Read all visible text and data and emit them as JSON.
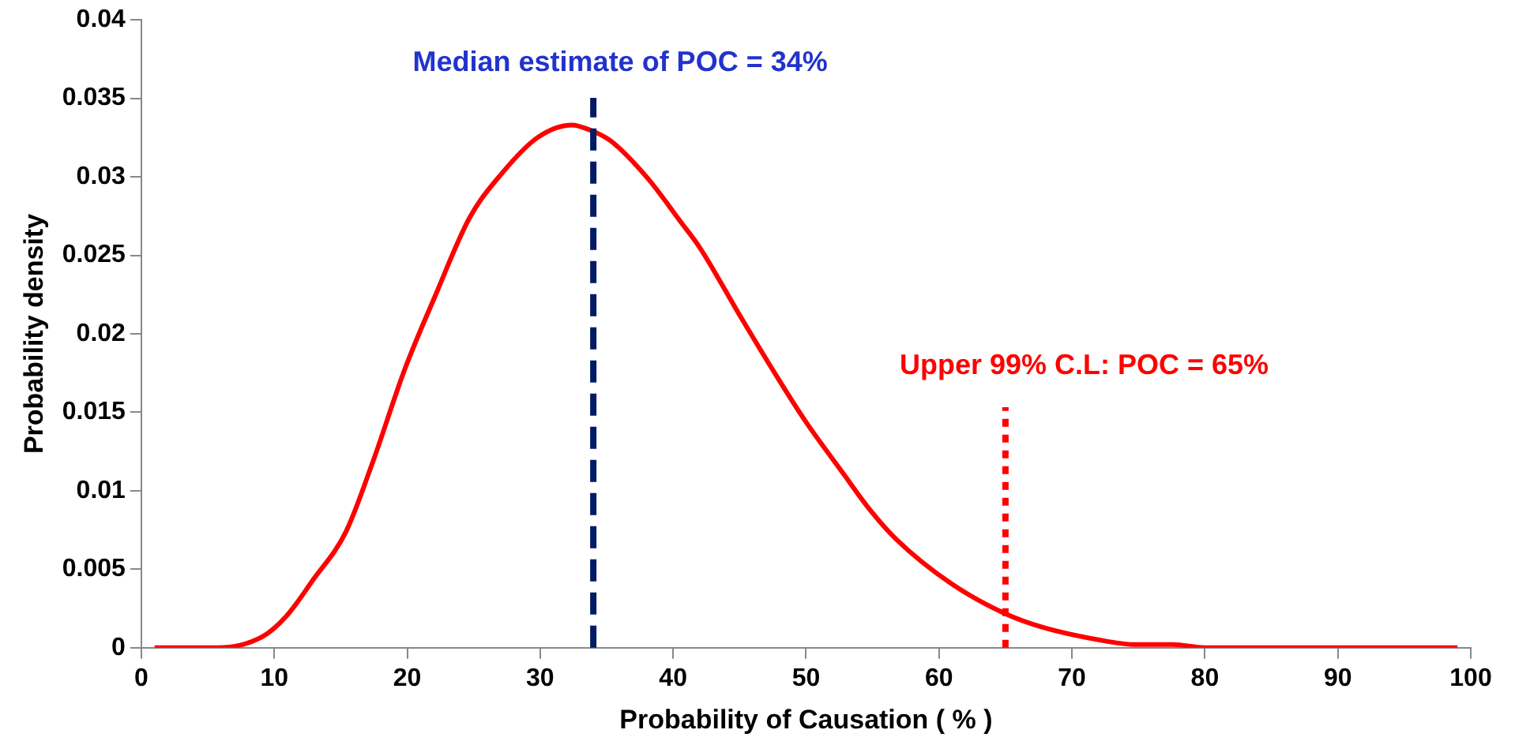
{
  "chart_data": {
    "type": "line",
    "xlabel": "Probability of Causation ( % )",
    "ylabel": "Probability density",
    "xlim": [
      0,
      100
    ],
    "xticks": [
      0,
      10,
      20,
      30,
      40,
      50,
      60,
      70,
      80,
      90,
      100
    ],
    "ylim": [
      0,
      0.04
    ],
    "yticks": [
      0,
      0.005,
      0.01,
      0.015,
      0.02,
      0.025,
      0.03,
      0.035,
      0.04
    ],
    "grid": false,
    "legend": false,
    "marker": "none",
    "line_style": "solid",
    "series": [
      {
        "color": "#ff0000",
        "x": [
          1,
          5.7,
          9.1,
          10.9,
          12.9,
          15.4,
          17.4,
          19.8,
          22.1,
          24.7,
          27.1,
          29.8,
          32.4,
          33.7,
          35.3,
          38.1,
          40.6,
          42,
          45,
          47.5,
          49.9,
          52.8,
          54.8,
          56.8,
          60.9,
          64.9,
          67.8,
          72.7,
          74.7,
          77.6,
          80,
          99
        ],
        "values": [
          0,
          0,
          0.0007,
          0.002,
          0.0043,
          0.0074,
          0.0118,
          0.0177,
          0.0224,
          0.0274,
          0.0302,
          0.0325,
          0.0333,
          0.033,
          0.0323,
          0.0299,
          0.0271,
          0.0255,
          0.0212,
          0.0177,
          0.0145,
          0.0111,
          0.0088,
          0.0069,
          0.0041,
          0.0022,
          0.0013,
          0.0004,
          0.0002,
          0.0002,
          0,
          0
        ]
      }
    ],
    "ref_lines": [
      {
        "axis": "x",
        "value": 34,
        "label": "Median estimate of POC = 34%",
        "color": "#001a66",
        "line_style": "dashed"
      },
      {
        "axis": "x",
        "value": 65,
        "label": "Upper 99% C.L: POC = 65%",
        "color": "#ff0000",
        "line_style": "dotted"
      }
    ]
  }
}
